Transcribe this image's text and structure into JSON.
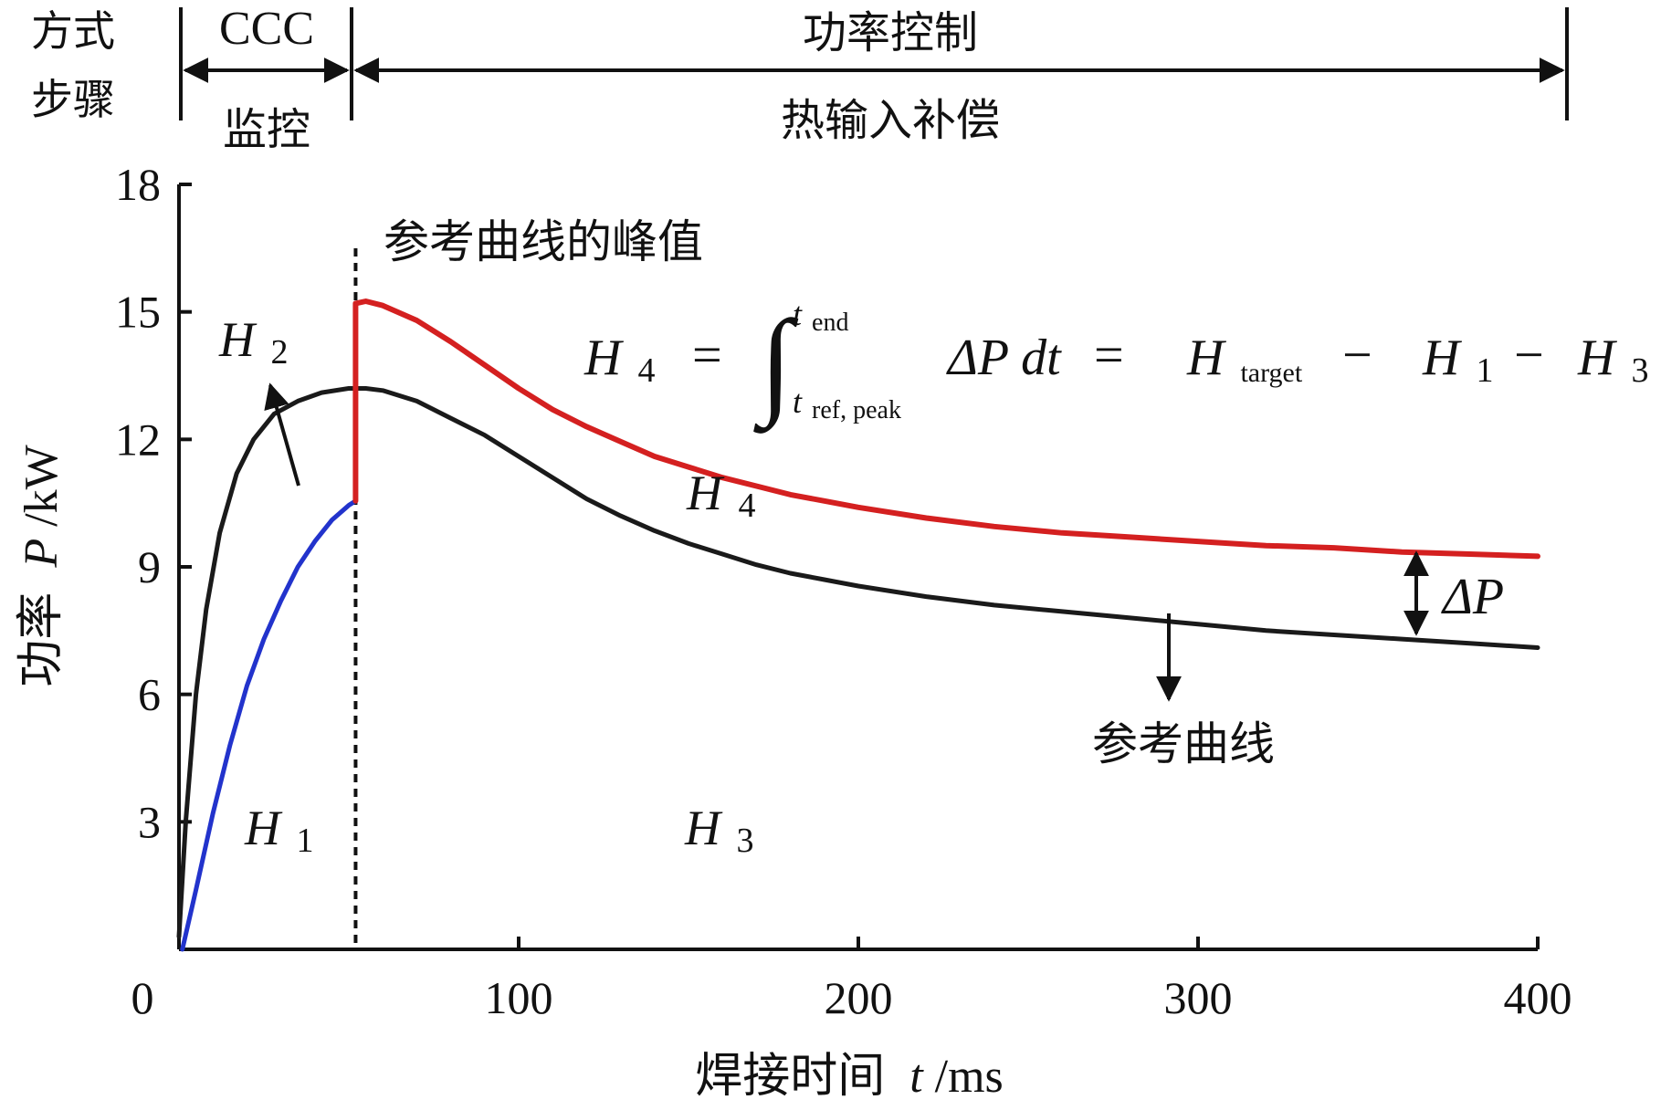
{
  "header": {
    "row1_label": "方式",
    "row2_label": "步骤",
    "phase1_mode": "CCC",
    "phase1_step": "监控",
    "phase2_mode": "功率控制",
    "phase2_step": "热输入补偿"
  },
  "annotations": {
    "peak_label": "参考曲线的峰值",
    "reference_label": "参考曲线",
    "H1": "H",
    "H1_sub": "1",
    "H2": "H",
    "H2_sub": "2",
    "H3": "H",
    "H3_sub": "3",
    "H4": "H",
    "H4_sub": "4",
    "delta_p": "ΔP",
    "formula": {
      "lhs": "H",
      "lhs_sub": "4",
      "eq1": "=",
      "integral_upper_var": "t",
      "integral_upper_sub": "end",
      "integral_lower_var": "t",
      "integral_lower_sub": "ref, peak",
      "integrand": "ΔP dt",
      "eq2": "=",
      "rhs_a": "H",
      "rhs_a_sub": "target",
      "minus1": "−",
      "rhs_b": "H",
      "rhs_b_sub": "1",
      "minus2": "−",
      "rhs_c": "H",
      "rhs_c_sub": "3"
    }
  },
  "chart_data": {
    "type": "line",
    "xlabel_text": "焊接时间",
    "xlabel_var": "t",
    "xlabel_unit": "/ms",
    "ylabel_text": "功率",
    "ylabel_var": "P",
    "ylabel_unit": "/kW",
    "xlim": [
      0,
      400
    ],
    "ylim": [
      0,
      18
    ],
    "xticks": [
      "0",
      "100",
      "200",
      "300",
      "400"
    ],
    "yticks": [
      "3",
      "6",
      "9",
      "12",
      "15",
      "18"
    ],
    "ytick_values": [
      3,
      6,
      9,
      12,
      15,
      18
    ],
    "xtick_values": [
      0,
      100,
      200,
      300,
      400
    ],
    "phase_boundary_x": 52,
    "colors": {
      "reference": "#1a1a1a",
      "blue": "#2233cc",
      "red": "#d42020",
      "axis": "#111111"
    },
    "series": [
      {
        "key": "reference",
        "color": "#1a1a1a",
        "points": [
          [
            0,
            0.3
          ],
          [
            2,
            3.0
          ],
          [
            5,
            6.0
          ],
          [
            8,
            8.0
          ],
          [
            12,
            9.8
          ],
          [
            17,
            11.2
          ],
          [
            22,
            12.0
          ],
          [
            28,
            12.6
          ],
          [
            35,
            12.9
          ],
          [
            42,
            13.1
          ],
          [
            50,
            13.2
          ],
          [
            55,
            13.2
          ],
          [
            60,
            13.15
          ],
          [
            70,
            12.9
          ],
          [
            80,
            12.5
          ],
          [
            90,
            12.1
          ],
          [
            100,
            11.6
          ],
          [
            110,
            11.1
          ],
          [
            120,
            10.6
          ],
          [
            130,
            10.2
          ],
          [
            140,
            9.85
          ],
          [
            150,
            9.55
          ],
          [
            160,
            9.3
          ],
          [
            170,
            9.05
          ],
          [
            180,
            8.85
          ],
          [
            190,
            8.7
          ],
          [
            200,
            8.55
          ],
          [
            220,
            8.3
          ],
          [
            240,
            8.1
          ],
          [
            260,
            7.95
          ],
          [
            280,
            7.8
          ],
          [
            300,
            7.65
          ],
          [
            320,
            7.5
          ],
          [
            340,
            7.4
          ],
          [
            360,
            7.3
          ],
          [
            380,
            7.2
          ],
          [
            400,
            7.1
          ]
        ]
      },
      {
        "key": "blue",
        "color": "#2233cc",
        "points": [
          [
            1,
            0.0
          ],
          [
            5,
            1.4
          ],
          [
            10,
            3.2
          ],
          [
            15,
            4.8
          ],
          [
            20,
            6.2
          ],
          [
            25,
            7.3
          ],
          [
            30,
            8.2
          ],
          [
            35,
            9.0
          ],
          [
            40,
            9.6
          ],
          [
            45,
            10.1
          ],
          [
            50,
            10.45
          ],
          [
            52,
            10.55
          ]
        ]
      },
      {
        "key": "red",
        "color": "#d42020",
        "points": [
          [
            52,
            10.55
          ],
          [
            52,
            15.2
          ],
          [
            55,
            15.25
          ],
          [
            60,
            15.15
          ],
          [
            70,
            14.8
          ],
          [
            80,
            14.3
          ],
          [
            90,
            13.75
          ],
          [
            100,
            13.2
          ],
          [
            110,
            12.7
          ],
          [
            120,
            12.3
          ],
          [
            130,
            11.95
          ],
          [
            140,
            11.6
          ],
          [
            150,
            11.35
          ],
          [
            160,
            11.1
          ],
          [
            170,
            10.9
          ],
          [
            180,
            10.7
          ],
          [
            190,
            10.55
          ],
          [
            200,
            10.4
          ],
          [
            220,
            10.15
          ],
          [
            240,
            9.95
          ],
          [
            260,
            9.8
          ],
          [
            280,
            9.7
          ],
          [
            300,
            9.6
          ],
          [
            320,
            9.5
          ],
          [
            340,
            9.45
          ],
          [
            360,
            9.35
          ],
          [
            380,
            9.3
          ],
          [
            400,
            9.25
          ]
        ]
      }
    ]
  }
}
